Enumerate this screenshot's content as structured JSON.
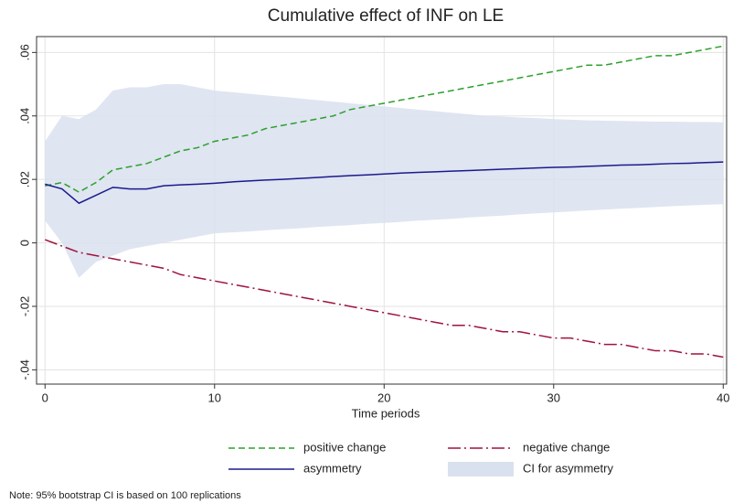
{
  "chart_data": {
    "type": "line",
    "title": "Cumulative effect of INF on LE",
    "x_label": "Time periods",
    "note": "Note: 95% bootstrap CI is based on 100 replications",
    "x": [
      0,
      1,
      2,
      3,
      4,
      5,
      6,
      7,
      8,
      9,
      10,
      11,
      12,
      13,
      14,
      15,
      16,
      17,
      18,
      19,
      20,
      21,
      22,
      23,
      24,
      25,
      26,
      27,
      28,
      29,
      30,
      31,
      32,
      33,
      34,
      35,
      36,
      37,
      38,
      39,
      40
    ],
    "series": [
      {
        "name": "positive change",
        "color": "#2ca02c",
        "values": [
          0.018,
          0.019,
          0.016,
          0.019,
          0.023,
          0.024,
          0.025,
          0.027,
          0.029,
          0.03,
          0.032,
          0.033,
          0.034,
          0.036,
          0.037,
          0.038,
          0.039,
          0.04,
          0.042,
          0.043,
          0.044,
          0.045,
          0.046,
          0.047,
          0.048,
          0.049,
          0.05,
          0.051,
          0.052,
          0.053,
          0.054,
          0.055,
          0.056,
          0.056,
          0.057,
          0.058,
          0.059,
          0.059,
          0.06,
          0.061,
          0.062
        ]
      },
      {
        "name": "negative change",
        "color": "#a0123c",
        "values": [
          0.001,
          -0.001,
          -0.003,
          -0.004,
          -0.005,
          -0.006,
          -0.007,
          -0.008,
          -0.01,
          -0.011,
          -0.012,
          -0.013,
          -0.014,
          -0.015,
          -0.016,
          -0.017,
          -0.018,
          -0.019,
          -0.02,
          -0.021,
          -0.022,
          -0.023,
          -0.024,
          -0.025,
          -0.026,
          -0.026,
          -0.027,
          -0.028,
          -0.028,
          -0.029,
          -0.03,
          -0.03,
          -0.031,
          -0.032,
          -0.032,
          -0.033,
          -0.034,
          -0.034,
          -0.035,
          -0.035,
          -0.036
        ]
      },
      {
        "name": "asymmetry",
        "color": "#1a1a8c",
        "values": [
          0.0185,
          0.017,
          0.0125,
          0.015,
          0.0175,
          0.017,
          0.017,
          0.018,
          0.0183,
          0.0185,
          0.0188,
          0.0192,
          0.0195,
          0.0198,
          0.02,
          0.0203,
          0.0206,
          0.0209,
          0.0212,
          0.0214,
          0.0217,
          0.022,
          0.0222,
          0.0224,
          0.0226,
          0.0228,
          0.023,
          0.0232,
          0.0234,
          0.0236,
          0.0238,
          0.0239,
          0.0241,
          0.0243,
          0.0245,
          0.0246,
          0.0248,
          0.025,
          0.0251,
          0.0253,
          0.0255
        ]
      }
    ],
    "band": {
      "name": "CI for asymmetry",
      "color": "#d9e1ee",
      "upper": [
        0.032,
        0.04,
        0.039,
        0.042,
        0.048,
        0.049,
        0.049,
        0.05,
        0.05,
        0.049,
        0.048,
        0.0475,
        0.047,
        0.0465,
        0.046,
        0.0455,
        0.045,
        0.0445,
        0.044,
        0.0435,
        0.043,
        0.0425,
        0.042,
        0.0415,
        0.041,
        0.0405,
        0.04,
        0.0398,
        0.0395,
        0.0393,
        0.039,
        0.0388,
        0.0386,
        0.0385,
        0.0384,
        0.0383,
        0.0382,
        0.0382,
        0.0381,
        0.0381,
        0.038
      ],
      "lower": [
        0.007,
        0.0,
        -0.011,
        -0.006,
        -0.004,
        -0.002,
        -0.001,
        0.0,
        0.001,
        0.002,
        0.003,
        0.0033,
        0.0036,
        0.004,
        0.0043,
        0.0046,
        0.005,
        0.0053,
        0.0056,
        0.006,
        0.0063,
        0.0066,
        0.007,
        0.0073,
        0.0076,
        0.008,
        0.0083,
        0.0086,
        0.009,
        0.0093,
        0.0096,
        0.0099,
        0.0102,
        0.0105,
        0.0108,
        0.011,
        0.0113,
        0.0116,
        0.0118,
        0.012,
        0.0122
      ]
    },
    "xlim": [
      -0.5,
      40.2
    ],
    "ylim": [
      -0.0445,
      0.065
    ],
    "xticks": [
      0,
      10,
      20,
      30,
      40
    ],
    "yticks": [
      {
        "value": -0.04,
        "label": "-.04"
      },
      {
        "value": -0.02,
        "label": "-.02"
      },
      0,
      {
        "value": 0.02,
        "label": ".02"
      },
      {
        "value": 0.04,
        "label": ".04"
      },
      {
        "value": 0.06,
        "label": ".06"
      }
    ],
    "grid": true
  }
}
